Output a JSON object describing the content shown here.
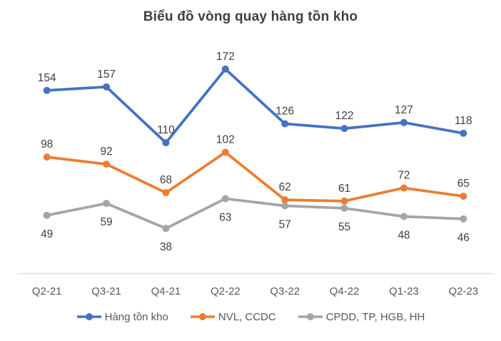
{
  "chart_data": {
    "type": "line",
    "title": "Biểu đồ vòng quay hàng tồn kho",
    "categories": [
      "Q2-21",
      "Q3-21",
      "Q4-21",
      "Q2-22",
      "Q3-22",
      "Q4-22",
      "Q1-23",
      "Q2-23"
    ],
    "series": [
      {
        "name": "Hàng tồn kho",
        "color": "#4472C4",
        "values": [
          154,
          157,
          110,
          172,
          126,
          122,
          127,
          118
        ],
        "label_position": "above"
      },
      {
        "name": "NVL, CCDC",
        "color": "#ED7D31",
        "values": [
          98,
          92,
          68,
          102,
          62,
          61,
          72,
          65
        ],
        "label_position": "above"
      },
      {
        "name": "CPDD, TP, HGB, HH",
        "color": "#A5A5A5",
        "values": [
          49,
          59,
          38,
          63,
          57,
          55,
          48,
          46
        ],
        "label_position": "below"
      }
    ],
    "ylim": [
      0,
      230
    ],
    "grid": false,
    "data_labels": true,
    "legend_position": "bottom",
    "axis_line_color": "#D9D9D9",
    "data_label_color": "#404040",
    "tick_label_color": "#595959"
  }
}
